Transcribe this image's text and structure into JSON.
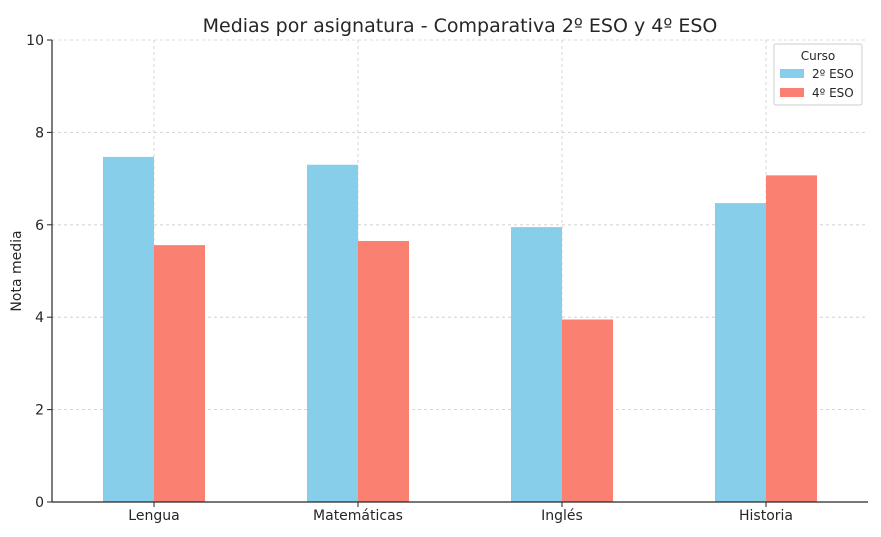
{
  "chart_data": {
    "type": "bar",
    "title": "Medias por asignatura - Comparativa 2º ESO y 4º ESO",
    "xlabel": "",
    "ylabel": "Nota media",
    "categories": [
      "Lengua",
      "Matemáticas",
      "Inglés",
      "Historia"
    ],
    "series": [
      {
        "name": "2º ESO",
        "values": [
          7.47,
          7.3,
          5.95,
          6.47
        ]
      },
      {
        "name": "4º ESO",
        "values": [
          5.56,
          5.65,
          3.95,
          7.07
        ]
      }
    ],
    "ylim": [
      0,
      10
    ],
    "yticks": [
      0,
      2,
      4,
      6,
      8,
      10
    ],
    "grid": true,
    "legend": {
      "title": "Curso",
      "placement": "top-right"
    },
    "colors": {
      "2º ESO": "#87ceeb",
      "4º ESO": "#fa8072",
      "grid": "#cccccc",
      "axis": "#262626"
    }
  }
}
